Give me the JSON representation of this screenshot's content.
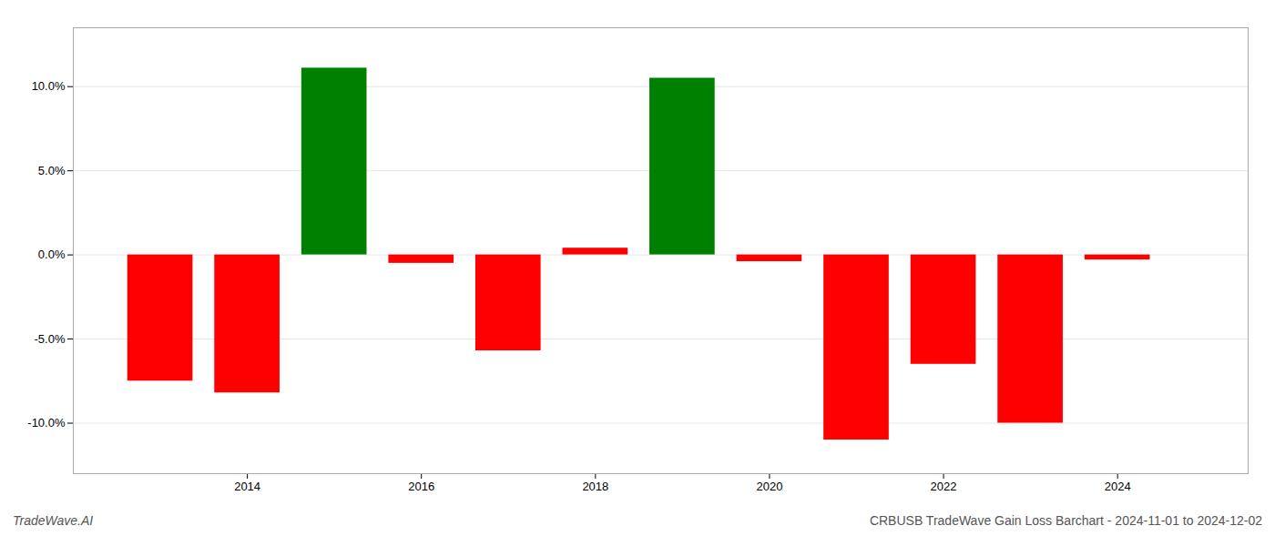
{
  "chart_data": {
    "type": "bar",
    "title": "CRBUSB TradeWave Gain Loss Barchart - 2024-11-01 to 2024-12-02",
    "annotations": [
      "TradeWave.AI"
    ],
    "x": [
      2013,
      2014,
      2015,
      2016,
      2017,
      2018,
      2019,
      2020,
      2021,
      2022,
      2023,
      2024
    ],
    "values": [
      -7.5,
      -8.2,
      11.1,
      -0.5,
      -5.7,
      0.4,
      10.5,
      -0.4,
      -11.0,
      -6.5,
      -10.0,
      -0.3
    ],
    "colors": [
      "#ff0000",
      "#ff0000",
      "#008000",
      "#ff0000",
      "#ff0000",
      "#ff0000",
      "#008000",
      "#ff0000",
      "#ff0000",
      "#ff0000",
      "#ff0000",
      "#ff0000"
    ],
    "xlim": [
      2012.0,
      2025.5
    ],
    "ylim": [
      -13.0,
      13.5
    ],
    "xticks": [
      2014,
      2016,
      2018,
      2020,
      2022,
      2024
    ],
    "yticks": [
      {
        "value": -10.0,
        "label": "-10.0%"
      },
      {
        "value": -5.0,
        "label": "-5.0%"
      },
      {
        "value": 0.0,
        "label": "0.0%"
      },
      {
        "value": 5.0,
        "label": "5.0%"
      },
      {
        "value": 10.0,
        "label": "10.0%"
      }
    ],
    "grid": true
  }
}
